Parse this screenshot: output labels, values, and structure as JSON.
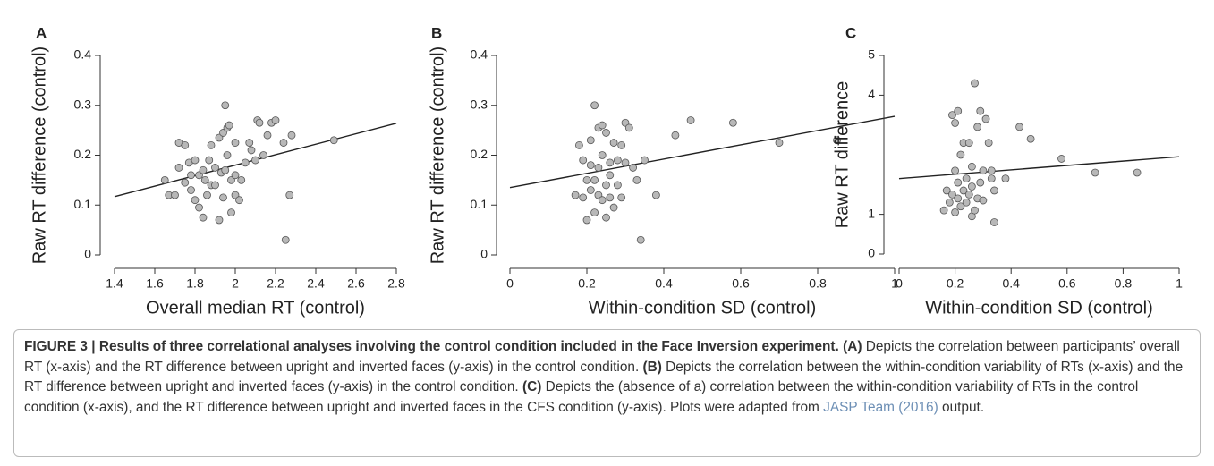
{
  "chart_data": [
    {
      "type": "scatter",
      "panel": "A",
      "x_label": "Overall median RT (control)",
      "y_label": "Raw RT difference (control)",
      "xlim": [
        1.4,
        2.8
      ],
      "xticks": [
        1.4,
        1.6,
        1.8,
        2,
        2.2,
        2.4,
        2.6,
        2.8
      ],
      "ylim": [
        0,
        0.4
      ],
      "yticks": [
        0,
        0.1,
        0.2,
        0.3,
        0.4
      ],
      "color": "#b8b8b8",
      "x": [
        1.65,
        1.67,
        1.7,
        1.72,
        1.72,
        1.75,
        1.75,
        1.77,
        1.78,
        1.78,
        1.8,
        1.8,
        1.82,
        1.82,
        1.84,
        1.84,
        1.85,
        1.86,
        1.87,
        1.88,
        1.88,
        1.9,
        1.9,
        1.92,
        1.92,
        1.93,
        1.94,
        1.94,
        1.95,
        1.95,
        1.96,
        1.96,
        1.97,
        1.98,
        1.98,
        2.0,
        2.0,
        2.0,
        2.02,
        2.03,
        2.05,
        2.07,
        2.08,
        2.1,
        2.11,
        2.12,
        2.14,
        2.16,
        2.18,
        2.2,
        2.24,
        2.25,
        2.27,
        2.28,
        2.49
      ],
      "values": [
        0.15,
        0.12,
        0.12,
        0.175,
        0.225,
        0.22,
        0.145,
        0.185,
        0.13,
        0.16,
        0.11,
        0.19,
        0.095,
        0.16,
        0.075,
        0.17,
        0.15,
        0.12,
        0.19,
        0.14,
        0.22,
        0.14,
        0.175,
        0.07,
        0.235,
        0.165,
        0.115,
        0.245,
        0.3,
        0.17,
        0.2,
        0.255,
        0.26,
        0.085,
        0.15,
        0.16,
        0.12,
        0.225,
        0.11,
        0.15,
        0.185,
        0.225,
        0.21,
        0.19,
        0.27,
        0.265,
        0.2,
        0.24,
        0.265,
        0.27,
        0.225,
        0.03,
        0.12,
        0.24,
        0.23
      ],
      "fit": {
        "x": [
          1.4,
          2.8
        ],
        "values": [
          0.117,
          0.264
        ]
      }
    },
    {
      "type": "scatter",
      "panel": "B",
      "x_label": "Within-condition SD (control)",
      "y_label": "Raw RT difference (control)",
      "xlim": [
        0,
        1
      ],
      "xticks": [
        0,
        0.2,
        0.4,
        0.6,
        0.8,
        1
      ],
      "ylim": [
        0,
        0.4
      ],
      "yticks": [
        0,
        0.1,
        0.2,
        0.3,
        0.4
      ],
      "color": "#b8b8b8",
      "x": [
        0.17,
        0.18,
        0.19,
        0.19,
        0.2,
        0.2,
        0.21,
        0.21,
        0.21,
        0.22,
        0.22,
        0.22,
        0.23,
        0.23,
        0.23,
        0.24,
        0.24,
        0.24,
        0.25,
        0.25,
        0.25,
        0.26,
        0.26,
        0.26,
        0.27,
        0.27,
        0.28,
        0.28,
        0.29,
        0.29,
        0.3,
        0.3,
        0.31,
        0.32,
        0.33,
        0.34,
        0.35,
        0.38,
        0.43,
        0.47,
        0.58,
        0.7,
        0.85
      ],
      "values": [
        0.12,
        0.22,
        0.115,
        0.19,
        0.15,
        0.07,
        0.13,
        0.23,
        0.18,
        0.085,
        0.3,
        0.15,
        0.255,
        0.12,
        0.175,
        0.26,
        0.2,
        0.11,
        0.14,
        0.075,
        0.245,
        0.185,
        0.115,
        0.16,
        0.225,
        0.095,
        0.19,
        0.14,
        0.115,
        0.22,
        0.265,
        0.185,
        0.255,
        0.175,
        0.15,
        0.03,
        0.19,
        0.12,
        0.24,
        0.27,
        0.265,
        0.225,
        0.23
      ],
      "fit": {
        "x": [
          0,
          1
        ],
        "values": [
          0.135,
          0.278
        ]
      }
    },
    {
      "type": "scatter",
      "panel": "C",
      "x_label": "Within-condition SD (control)",
      "y_label": "Raw RT difference",
      "xlim": [
        0,
        1
      ],
      "xticks": [
        0,
        0.2,
        0.4,
        0.6,
        0.8,
        1
      ],
      "ylim": [
        0,
        5
      ],
      "yticks": [
        0,
        1,
        4,
        5
      ],
      "color": "#b8b8b8",
      "x": [
        0.16,
        0.17,
        0.18,
        0.19,
        0.19,
        0.2,
        0.2,
        0.2,
        0.21,
        0.21,
        0.21,
        0.22,
        0.22,
        0.23,
        0.23,
        0.24,
        0.24,
        0.25,
        0.25,
        0.26,
        0.26,
        0.26,
        0.27,
        0.27,
        0.28,
        0.28,
        0.29,
        0.29,
        0.3,
        0.3,
        0.31,
        0.32,
        0.33,
        0.33,
        0.34,
        0.34,
        0.38,
        0.43,
        0.47,
        0.58,
        0.7,
        0.85
      ],
      "values": [
        1.1,
        1.6,
        1.3,
        1.5,
        3.5,
        3.3,
        1.05,
        2.1,
        1.4,
        3.6,
        1.8,
        1.2,
        2.5,
        2.8,
        1.6,
        1.3,
        1.9,
        1.5,
        2.8,
        1.7,
        2.2,
        0.95,
        4.3,
        1.1,
        1.4,
        3.2,
        1.8,
        3.6,
        2.1,
        1.35,
        3.4,
        2.8,
        1.9,
        2.1,
        0.8,
        1.6,
        1.9,
        3.2,
        2.9,
        2.4,
        2.05,
        2.05
      ],
      "fit": {
        "x": [
          0,
          1
        ],
        "values": [
          1.9,
          2.45
        ]
      }
    }
  ],
  "caption": [
    {
      "text": "FIGURE 3 | Results of three correlational analyses involving the control condition included in the Face Inversion experiment. (A)",
      "style": "bold"
    },
    {
      "text": " Depicts the correlation between participants’ overall RT (x-axis) and the RT difference between upright and inverted faces (y-axis) in the control condition. ",
      "style": "normal"
    },
    {
      "text": "(B)",
      "style": "bold"
    },
    {
      "text": " Depicts the correlation between the within-condition variability of RTs (x-axis) and the RT difference between upright and inverted faces (y-axis) in the control condition. ",
      "style": "normal"
    },
    {
      "text": "(C)",
      "style": "bold"
    },
    {
      "text": " Depicts the (absence of a) correlation between the within-condition variability of RTs in the control condition (x-axis), and the RT difference between upright and inverted faces in the CFS condition (y-axis). Plots were adapted from ",
      "style": "normal"
    },
    {
      "text": "JASP Team (2016)",
      "style": "link"
    },
    {
      "text": " output.",
      "style": "normal"
    }
  ]
}
